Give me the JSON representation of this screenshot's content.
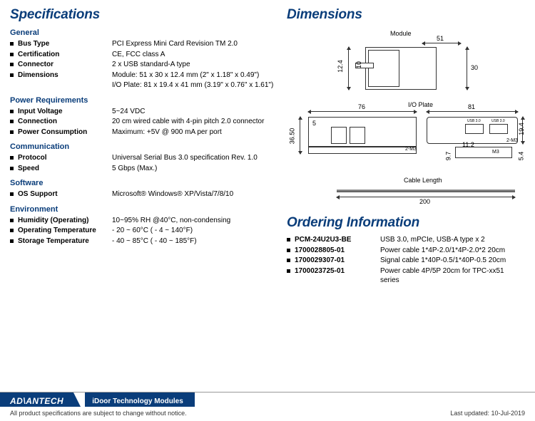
{
  "sections": {
    "specifications": "Specifications",
    "dimensions": "Dimensions",
    "ordering": "Ordering Information"
  },
  "spec_groups": {
    "general": {
      "title": "General",
      "rows": [
        {
          "label": "Bus Type",
          "value": "PCI Express Mini Card Revision TM 2.0"
        },
        {
          "label": "Certification",
          "value": "CE, FCC class A"
        },
        {
          "label": "Connector",
          "value": "2 x USB standard-A type"
        },
        {
          "label": "Dimensions",
          "value": "Module: 51 x 30 x 12.4 mm (2\" x 1.18\" x 0.49\")"
        },
        {
          "label": "",
          "value": "I/O Plate: 81 x 19.4 x 41 mm (3.19\" x 0.76\" x 1.61\")"
        }
      ]
    },
    "power": {
      "title": "Power Requirements",
      "rows": [
        {
          "label": "Input Voltage",
          "value": "5~24 VDC"
        },
        {
          "label": "Connection",
          "value": "20 cm wired cable with 4-pin pitch 2.0 connector"
        },
        {
          "label": "Power Consumption",
          "value": "Maximum: +5V @ 900 mA per port"
        }
      ]
    },
    "comm": {
      "title": "Communication",
      "rows": [
        {
          "label": "Protocol",
          "value": "Universal Serial Bus 3.0 specification Rev. 1.0"
        },
        {
          "label": "Speed",
          "value": "5 Gbps (Max.)"
        }
      ]
    },
    "software": {
      "title": "Software",
      "rows": [
        {
          "label": "OS Support",
          "value": "Microsoft® Windows® XP/Vista/7/8/10"
        }
      ]
    },
    "env": {
      "title": "Environment",
      "rows": [
        {
          "label": "Humidity (Operating)",
          "value": "10~95% RH @40°C, non-condensing"
        },
        {
          "label": "Operating Temperature",
          "value": "- 20 ~ 60°C ( - 4 ~ 140°F)"
        },
        {
          "label": "Storage Temperature",
          "value": "- 40 ~ 85°C ( - 40 ~ 185°F)"
        }
      ]
    }
  },
  "dimensions_drawing": {
    "module_label": "Module",
    "io_plate_label": "I/O Plate",
    "cable_label": "Cable Length",
    "dims": {
      "module_w": "51",
      "module_h": "30",
      "module_h2": "12.4",
      "module_h3": "10",
      "plate_w_left": "76",
      "plate_h_left": "36.50",
      "plate_tab": "5",
      "plate_w_right": "81",
      "plate_h_right": "19.4",
      "sub_w": "11.2",
      "sub_h1": "9.7",
      "sub_h2": "5.4",
      "cable_len": "200",
      "screw1": "2-M3",
      "screw2": "2-M3",
      "screw3": "M3",
      "usb_lbl": "USB 3.0"
    }
  },
  "ordering": [
    {
      "label": "PCM-24U2U3-BE",
      "value": "USB 3.0, mPCIe, USB-A type x 2"
    },
    {
      "label": "1700028805-01",
      "value": "Power cable 1*4P-2.0/1*4P-2.0*2 20cm"
    },
    {
      "label": "1700029307-01",
      "value": "Signal cable 1*40P-0.5/1*40P-0.5 20cm"
    },
    {
      "label": "1700023725-01",
      "value": "Power cable 4P/5P 20cm for TPC-xx51 series"
    }
  ],
  "footer": {
    "brand": "ADVANTECH",
    "module": "iDoor Technology Modules",
    "disclaimer": "All product specifications are subject to change without notice.",
    "updated": "Last updated: 10-Jul-2019"
  },
  "colors": {
    "heading": "#0a3d7a",
    "brand_bg": "#0a3d7a"
  }
}
